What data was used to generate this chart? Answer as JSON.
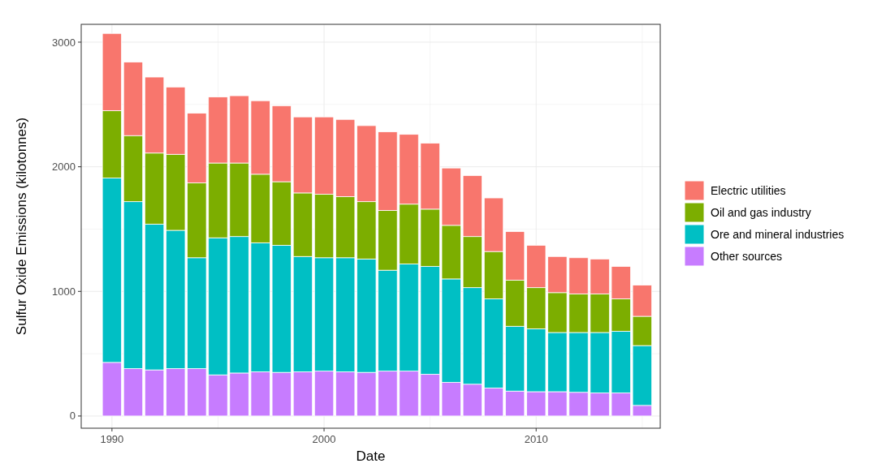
{
  "chart_data": {
    "type": "bar",
    "stacked": true,
    "xlabel": "Date",
    "ylabel": "Sulfur Oxide Emissions (kilotonnes)",
    "x": [
      1990,
      1991,
      1992,
      1993,
      1994,
      1995,
      1996,
      1997,
      1998,
      1999,
      2000,
      2001,
      2002,
      2003,
      2004,
      2005,
      2006,
      2007,
      2008,
      2009,
      2010,
      2011,
      2012,
      2013,
      2014,
      2015
    ],
    "series": [
      {
        "name": "Other sources",
        "color": "#c77cff",
        "values": [
          430,
          380,
          370,
          380,
          380,
          330,
          345,
          355,
          350,
          355,
          360,
          355,
          350,
          360,
          360,
          335,
          270,
          255,
          225,
          200,
          195,
          195,
          190,
          185,
          185,
          85
        ]
      },
      {
        "name": "Ore and mineral industries",
        "color": "#00bfc4",
        "values": [
          1480,
          1340,
          1170,
          1110,
          890,
          1100,
          1095,
          1035,
          1020,
          925,
          910,
          915,
          910,
          810,
          860,
          865,
          830,
          775,
          715,
          520,
          505,
          475,
          480,
          485,
          495,
          480
        ]
      },
      {
        "name": "Oil and gas industry",
        "color": "#7cae00",
        "values": [
          540,
          530,
          570,
          610,
          600,
          600,
          590,
          550,
          510,
          510,
          510,
          490,
          460,
          480,
          480,
          460,
          430,
          410,
          380,
          370,
          330,
          320,
          310,
          310,
          260,
          235
        ]
      },
      {
        "name": "Electric utilities",
        "color": "#f8766d",
        "values": [
          620,
          590,
          610,
          540,
          560,
          530,
          540,
          590,
          610,
          610,
          620,
          620,
          610,
          630,
          560,
          530,
          460,
          490,
          430,
          390,
          340,
          290,
          290,
          280,
          260,
          250
        ]
      }
    ],
    "xlim": [
      1988.55,
      2015.85
    ],
    "xticks": [
      1990,
      {
        "value": 1995,
        "label": null
      },
      2000,
      {
        "value": 2005,
        "label": null
      },
      2010,
      {
        "value": 2015,
        "label": null
      }
    ],
    "ylim": [
      -98,
      3143
    ],
    "yticks": [
      0,
      {
        "value": 500,
        "label": null
      },
      1000,
      {
        "value": 1500,
        "label": null
      },
      2000,
      {
        "value": 2500,
        "label": null
      },
      3000
    ],
    "grid": true,
    "legend": "right"
  }
}
